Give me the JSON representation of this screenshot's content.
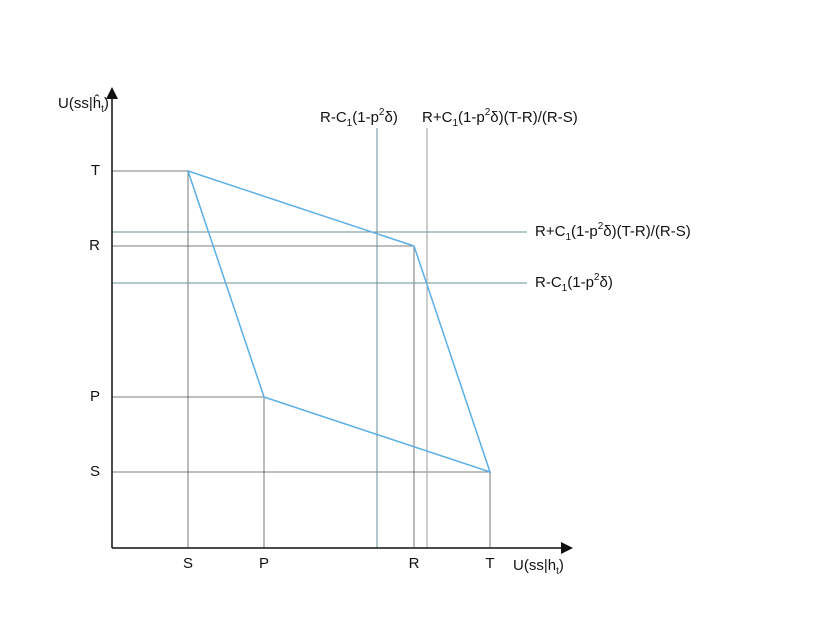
{
  "y_axis_label": [
    "U(ss|ĥ",
    "t",
    ")"
  ],
  "x_axis_label": [
    "U(ss|h",
    "t",
    ")"
  ],
  "y_ticks": [
    "T",
    "R",
    "P",
    "S"
  ],
  "x_ticks": [
    "S",
    "P",
    "R",
    "T"
  ],
  "annotations": {
    "top_left": [
      "R-C",
      "1",
      "(1-p",
      "2",
      "δ)"
    ],
    "top_right": [
      "R+C",
      "1",
      "(1-p",
      "2",
      "δ)(T-R)/(R-S)"
    ],
    "right_upper": [
      "R+C",
      "1",
      "(1-p",
      "2",
      "δ)(T-R)/(R-S)"
    ],
    "right_lower": [
      "R-C",
      "1",
      "(1-p",
      "2",
      "δ)"
    ]
  }
}
